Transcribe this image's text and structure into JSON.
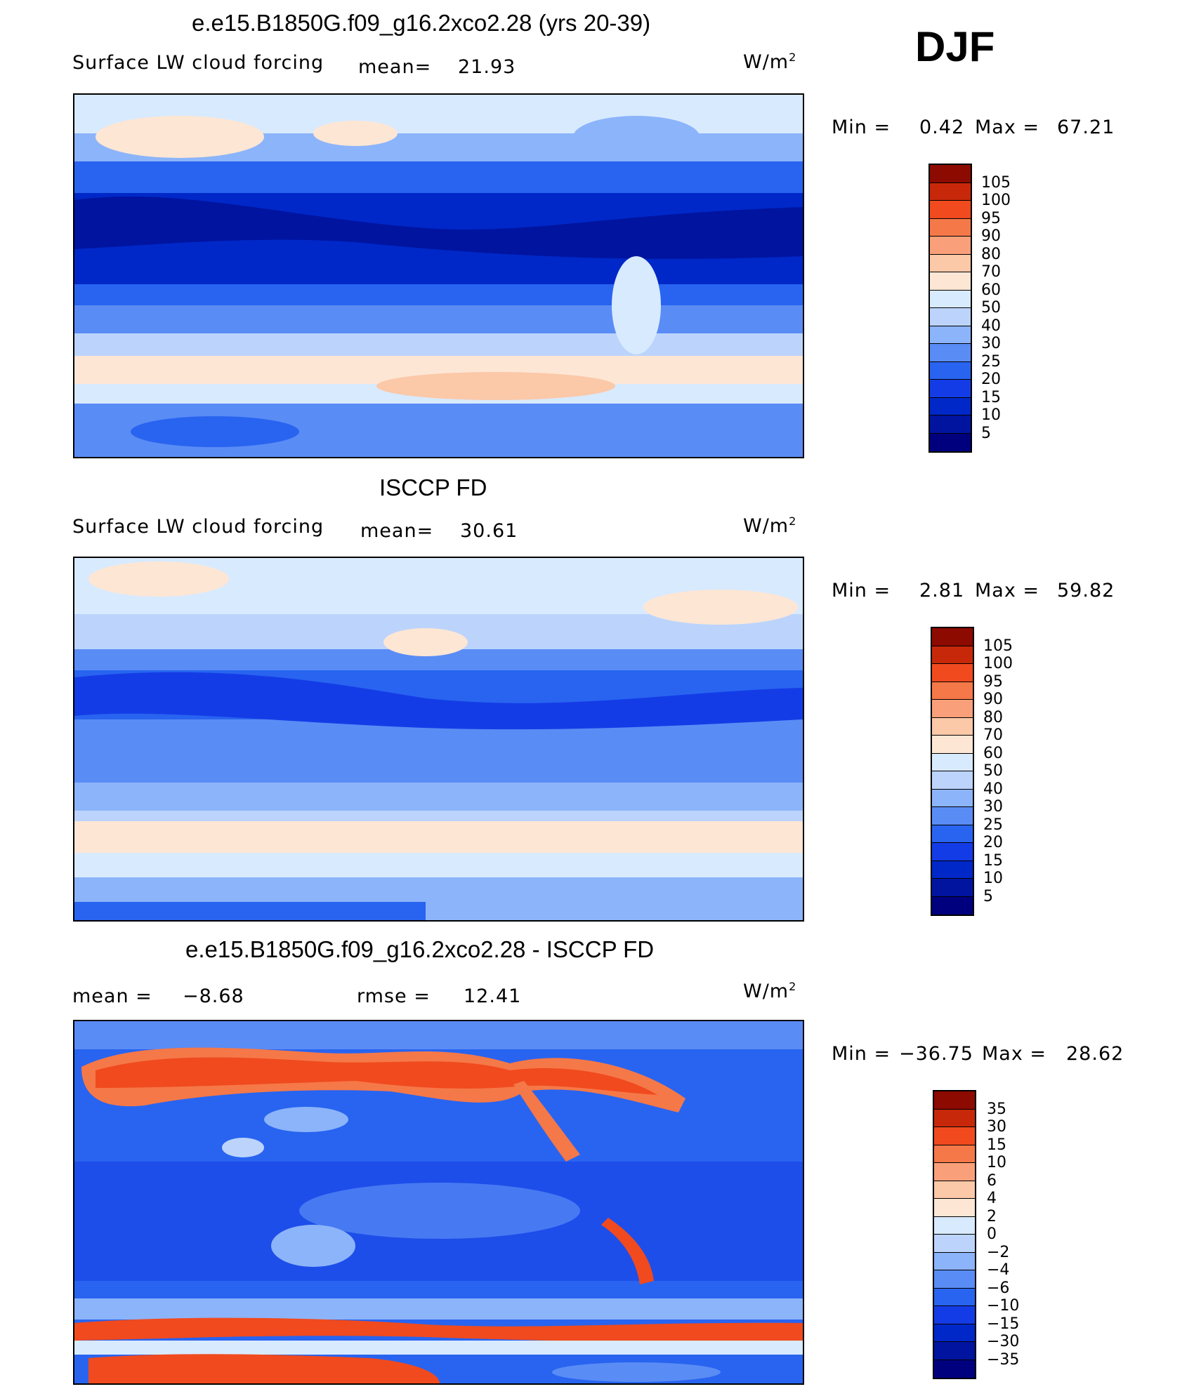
{
  "season": "DJF",
  "colors": {
    "abs_scale": [
      "#00007f",
      "#0014a0",
      "#0028c8",
      "#143ce6",
      "#2864f0",
      "#5a8cf5",
      "#8cb4fa",
      "#bcd4fc",
      "#d8eafe",
      "#fde6d4",
      "#fbc8a8",
      "#f9a07a",
      "#f57848",
      "#f04a1e",
      "#c8280a",
      "#8c0a00"
    ],
    "diff_scale": [
      "#00007f",
      "#0014a0",
      "#0028c8",
      "#143ce6",
      "#2864f0",
      "#5a8cf5",
      "#8cb4fa",
      "#bcd4fc",
      "#d8eafe",
      "#fde6d4",
      "#fbc8a8",
      "#f9a07a",
      "#f57848",
      "#f04a1e",
      "#c8280a",
      "#8c0a00"
    ]
  },
  "panels": [
    {
      "title": "e.e15.B1850G.f09_g16.2xco2.28 (yrs 20-39)",
      "left_label": "Surface LW cloud forcing",
      "mean_label": "mean=",
      "mean_value": "21.93",
      "units": "W/m",
      "units_sup": "2",
      "min_label": "Min =",
      "min_value": "0.42",
      "max_label": "Max =",
      "max_value": "67.21",
      "levels": [
        "105",
        "100",
        "95",
        "90",
        "80",
        "70",
        "60",
        "50",
        "40",
        "30",
        "25",
        "20",
        "15",
        "10",
        "5"
      ]
    },
    {
      "title": "ISCCP FD",
      "left_label": "Surface LW cloud forcing",
      "mean_label": "mean=",
      "mean_value": "30.61",
      "units": "W/m",
      "units_sup": "2",
      "min_label": "Min =",
      "min_value": "2.81",
      "max_label": "Max =",
      "max_value": "59.82",
      "levels": [
        "105",
        "100",
        "95",
        "90",
        "80",
        "70",
        "60",
        "50",
        "40",
        "30",
        "25",
        "20",
        "15",
        "10",
        "5"
      ]
    },
    {
      "title": "e.e15.B1850G.f09_g16.2xco2.28 - ISCCP FD",
      "mean_label": "mean =",
      "mean_value": "−8.68",
      "rmse_label": "rmse =",
      "rmse_value": "12.41",
      "units": "W/m",
      "units_sup": "2",
      "min_label": "Min =",
      "min_value": "−36.75",
      "max_label": "Max =",
      "max_value": "28.62",
      "levels": [
        "35",
        "30",
        "15",
        "10",
        "6",
        "4",
        "2",
        "0",
        "−2",
        "−4",
        "−6",
        "−10",
        "−15",
        "−30",
        "−35"
      ]
    }
  ],
  "chart_data": [
    {
      "type": "heatmap",
      "title": "e.e15.B1850G.f09_g16.2xco2.28 (yrs 20-39)",
      "variable": "Surface LW cloud forcing",
      "units": "W/m2",
      "mean": 21.93,
      "min": 0.42,
      "max": 67.21,
      "contour_levels": [
        5,
        10,
        15,
        20,
        25,
        30,
        40,
        50,
        60,
        70,
        80,
        90,
        95,
        100,
        105
      ]
    },
    {
      "type": "heatmap",
      "title": "ISCCP FD",
      "variable": "Surface LW cloud forcing",
      "units": "W/m2",
      "mean": 30.61,
      "min": 2.81,
      "max": 59.82,
      "contour_levels": [
        5,
        10,
        15,
        20,
        25,
        30,
        40,
        50,
        60,
        70,
        80,
        90,
        95,
        100,
        105
      ]
    },
    {
      "type": "heatmap",
      "title": "e.e15.B1850G.f09_g16.2xco2.28 - ISCCP FD",
      "units": "W/m2",
      "mean": -8.68,
      "rmse": 12.41,
      "min": -36.75,
      "max": 28.62,
      "contour_levels": [
        -35,
        -30,
        -15,
        -10,
        -6,
        -4,
        -2,
        0,
        2,
        4,
        6,
        10,
        15,
        30,
        35
      ]
    }
  ]
}
